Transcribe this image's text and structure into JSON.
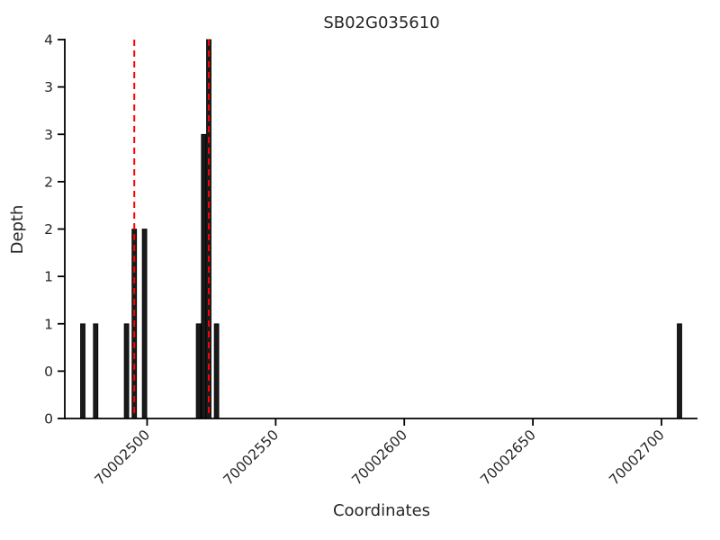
{
  "chart_data": {
    "type": "bar",
    "title": "SB02G035610",
    "xlabel": "Coordinates",
    "ylabel": "Depth",
    "xlim": [
      70002468,
      70002714
    ],
    "ylim": [
      0,
      4
    ],
    "grid": false,
    "bar_color": "#1a1a1a",
    "bar_edge_color": "#000000",
    "axis_color": "#000000",
    "text_color": "#262626",
    "vline_color": "#ff0000",
    "vline_style": "dashed",
    "xticks": [
      70002500,
      70002550,
      70002600,
      70002650,
      70002700
    ],
    "ytick_positions": [
      0,
      0.5,
      1,
      1.5,
      2,
      2.5,
      3,
      3.5,
      4
    ],
    "ytick_labels": [
      "0",
      "0",
      "1",
      "1",
      "2",
      "2",
      "3",
      "3",
      "4"
    ],
    "bars": [
      {
        "x": 70002475,
        "depth": 1
      },
      {
        "x": 70002480,
        "depth": 1
      },
      {
        "x": 70002492,
        "depth": 1
      },
      {
        "x": 70002495,
        "depth": 2
      },
      {
        "x": 70002499,
        "depth": 2
      },
      {
        "x": 70002520,
        "depth": 1
      },
      {
        "x": 70002522,
        "depth": 3
      },
      {
        "x": 70002524,
        "depth": 4
      },
      {
        "x": 70002527,
        "depth": 1
      },
      {
        "x": 70002707,
        "depth": 1
      }
    ],
    "vlines": [
      {
        "x": 70002495
      },
      {
        "x": 70002524
      }
    ]
  }
}
